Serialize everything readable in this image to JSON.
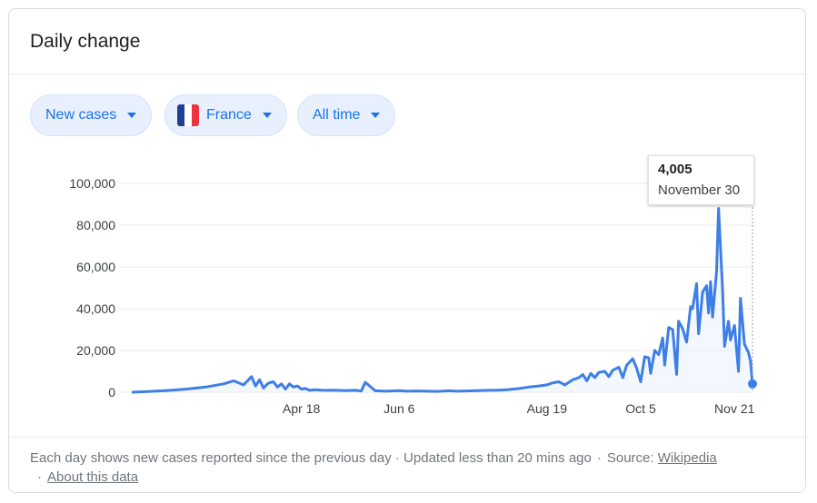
{
  "card": {
    "title": "Daily change"
  },
  "filters": {
    "metric": "New cases",
    "country": "France",
    "range": "All time"
  },
  "tooltip": {
    "value": "4,005",
    "date": "November 30"
  },
  "footer": {
    "note": "Each day shows new cases reported since the previous day · Updated less than 20 mins ago",
    "source_label": "Source:",
    "source_link": "Wikipedia",
    "about_link": "About this data",
    "separator": "·"
  },
  "colors": {
    "line": "#3d7fe6",
    "area": "#e8f0fe",
    "grid": "#ebebeb",
    "tick": "#3c4043",
    "accent": "#1a73e8"
  },
  "chart_data": {
    "type": "line",
    "title": "",
    "xlabel": "",
    "ylabel": "",
    "ylim": [
      0,
      100000
    ],
    "yticks": [
      0,
      20000,
      40000,
      60000,
      80000,
      100000
    ],
    "ytick_labels": [
      "0",
      "20,000",
      "40,000",
      "60,000",
      "80,000",
      "100,000"
    ],
    "xlim": [
      "2020-01-24",
      "2020-11-30"
    ],
    "xticks": [
      "2020-04-18",
      "2020-06-06",
      "2020-08-19",
      "2020-10-05",
      "2020-11-21"
    ],
    "xtick_labels": [
      "Apr 18",
      "Jun 6",
      "Aug 19",
      "Oct 5",
      "Nov 21"
    ],
    "grid": true,
    "series": [
      {
        "x": [
          "2020-01-24",
          "2020-02-01",
          "2020-02-10",
          "2020-02-20",
          "2020-03-01",
          "2020-03-10",
          "2020-03-15",
          "2020-03-20",
          "2020-03-24",
          "2020-03-26",
          "2020-03-28",
          "2020-03-30",
          "2020-04-01",
          "2020-04-02",
          "2020-04-04",
          "2020-04-06",
          "2020-04-08",
          "2020-04-10",
          "2020-04-12",
          "2020-04-14",
          "2020-04-16",
          "2020-04-18",
          "2020-04-20",
          "2020-04-22",
          "2020-04-25",
          "2020-04-28",
          "2020-05-01",
          "2020-05-05",
          "2020-05-10",
          "2020-05-15",
          "2020-05-18",
          "2020-05-20",
          "2020-05-25",
          "2020-05-30",
          "2020-06-02",
          "2020-06-06",
          "2020-06-10",
          "2020-06-15",
          "2020-06-20",
          "2020-06-25",
          "2020-07-01",
          "2020-07-05",
          "2020-07-10",
          "2020-07-15",
          "2020-07-20",
          "2020-07-25",
          "2020-07-30",
          "2020-08-05",
          "2020-08-10",
          "2020-08-15",
          "2020-08-19",
          "2020-08-22",
          "2020-08-25",
          "2020-08-28",
          "2020-09-01",
          "2020-09-04",
          "2020-09-06",
          "2020-09-08",
          "2020-09-10",
          "2020-09-12",
          "2020-09-14",
          "2020-09-17",
          "2020-09-19",
          "2020-09-21",
          "2020-09-24",
          "2020-09-26",
          "2020-09-28",
          "2020-10-01",
          "2020-10-03",
          "2020-10-05",
          "2020-10-07",
          "2020-10-09",
          "2020-10-10",
          "2020-10-12",
          "2020-10-14",
          "2020-10-16",
          "2020-10-17",
          "2020-10-19",
          "2020-10-21",
          "2020-10-23",
          "2020-10-24",
          "2020-10-26",
          "2020-10-28",
          "2020-10-30",
          "2020-10-31",
          "2020-11-02",
          "2020-11-03",
          "2020-11-05",
          "2020-11-07",
          "2020-11-08",
          "2020-11-09",
          "2020-11-10",
          "2020-11-12",
          "2020-11-13",
          "2020-11-15",
          "2020-11-16",
          "2020-11-18",
          "2020-11-19",
          "2020-11-21",
          "2020-11-23",
          "2020-11-24",
          "2020-11-26",
          "2020-11-28",
          "2020-11-29",
          "2020-11-30"
        ],
        "y": [
          0,
          300,
          800,
          1500,
          2500,
          4000,
          5500,
          3500,
          7500,
          3000,
          6000,
          2000,
          4000,
          4500,
          5000,
          2500,
          4000,
          1500,
          4000,
          2500,
          3000,
          1500,
          1800,
          900,
          1200,
          1000,
          900,
          1000,
          800,
          900,
          600,
          4800,
          700,
          500,
          600,
          800,
          500,
          600,
          500,
          400,
          700,
          500,
          600,
          800,
          900,
          1000,
          1200,
          1800,
          2500,
          3000,
          3500,
          4500,
          5000,
          3500,
          6000,
          7000,
          8500,
          5500,
          9000,
          7000,
          9500,
          10000,
          7500,
          10500,
          12000,
          7000,
          13000,
          16000,
          11500,
          5000,
          17000,
          16500,
          9000,
          20000,
          18000,
          26000,
          13000,
          31000,
          30000,
          8500,
          34000,
          30500,
          24000,
          41000,
          40000,
          52000,
          28000,
          48000,
          51000,
          38000,
          53000,
          36000,
          58000,
          88000,
          49000,
          22000,
          34000,
          25000,
          32000,
          10000,
          45000,
          23000,
          19000,
          15000,
          4005
        ]
      }
    ]
  }
}
